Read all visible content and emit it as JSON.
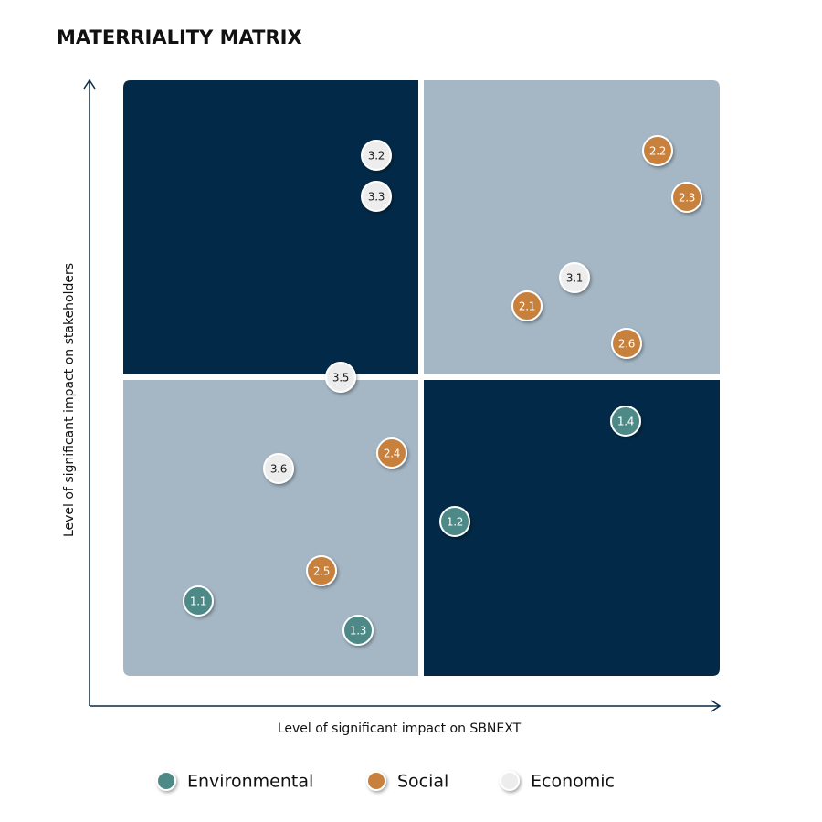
{
  "title": "MATERRIALITY MATRIX",
  "y_axis_label": "Level of significant impact on stakeholders",
  "x_axis_label": "Level of significant impact on SBNEXT",
  "groups": [
    {
      "name": "Environmental",
      "color": "#4e8a87",
      "text_color": "#ffffff",
      "nodes": [
        "1.1",
        "1.2",
        "1.3",
        "1.4"
      ]
    },
    {
      "name": "Social",
      "color": "#c8803d",
      "text_color": "#ffffff",
      "nodes": [
        "2.1",
        "2.2",
        "2.3",
        "2.4",
        "2.5",
        "2.6"
      ]
    },
    {
      "name": "Economic",
      "color": "#ededed",
      "text_color": "#1a1a1a",
      "nodes": [
        "3.1",
        "3.2",
        "3.3",
        "3.5",
        "3.6"
      ]
    }
  ]
}
